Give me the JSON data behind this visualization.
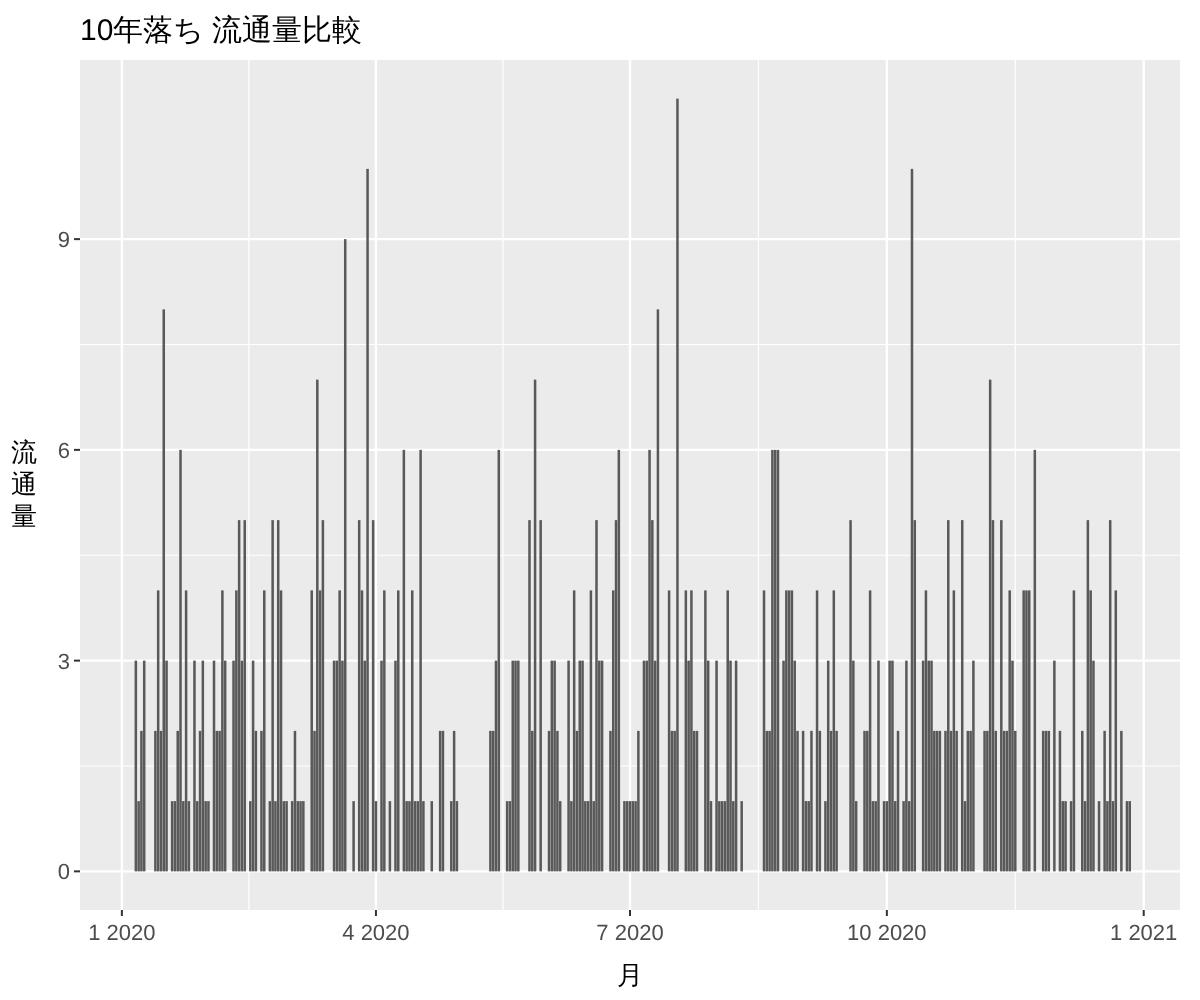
{
  "chart_data": {
    "type": "bar",
    "title": "10年落ち 流通量比較",
    "xlabel": "月",
    "ylabel": "流通量",
    "x": [
      "2020-01-06",
      "2020-01-07",
      "2020-01-08",
      "2020-01-09",
      "2020-01-13",
      "2020-01-14",
      "2020-01-15",
      "2020-01-16",
      "2020-01-17",
      "2020-01-19",
      "2020-01-20",
      "2020-01-21",
      "2020-01-22",
      "2020-01-23",
      "2020-01-24",
      "2020-01-25",
      "2020-01-27",
      "2020-01-28",
      "2020-01-29",
      "2020-01-30",
      "2020-01-31",
      "2020-02-01",
      "2020-02-03",
      "2020-02-04",
      "2020-02-05",
      "2020-02-06",
      "2020-02-07",
      "2020-02-10",
      "2020-02-11",
      "2020-02-12",
      "2020-02-13",
      "2020-02-14",
      "2020-02-16",
      "2020-02-17",
      "2020-02-18",
      "2020-02-20",
      "2020-02-21",
      "2020-02-23",
      "2020-02-24",
      "2020-02-25",
      "2020-02-26",
      "2020-02-27",
      "2020-02-28",
      "2020-02-29",
      "2020-03-02",
      "2020-03-03",
      "2020-03-04",
      "2020-03-05",
      "2020-03-06",
      "2020-03-09",
      "2020-03-10",
      "2020-03-11",
      "2020-03-12",
      "2020-03-13",
      "2020-03-17",
      "2020-03-18",
      "2020-03-19",
      "2020-03-20",
      "2020-03-21",
      "2020-03-24",
      "2020-03-26",
      "2020-03-27",
      "2020-03-28",
      "2020-03-29",
      "2020-03-31",
      "2020-04-01",
      "2020-04-03",
      "2020-04-04",
      "2020-04-06",
      "2020-04-08",
      "2020-04-09",
      "2020-04-11",
      "2020-04-12",
      "2020-04-13",
      "2020-04-14",
      "2020-04-15",
      "2020-04-16",
      "2020-04-17",
      "2020-04-18",
      "2020-04-21",
      "2020-04-24",
      "2020-04-25",
      "2020-04-28",
      "2020-04-29",
      "2020-04-30",
      "2020-05-12",
      "2020-05-13",
      "2020-05-14",
      "2020-05-15",
      "2020-05-18",
      "2020-05-19",
      "2020-05-20",
      "2020-05-21",
      "2020-05-22",
      "2020-05-26",
      "2020-05-27",
      "2020-05-28",
      "2020-05-30",
      "2020-06-02",
      "2020-06-03",
      "2020-06-04",
      "2020-06-05",
      "2020-06-06",
      "2020-06-09",
      "2020-06-10",
      "2020-06-11",
      "2020-06-12",
      "2020-06-13",
      "2020-06-14",
      "2020-06-15",
      "2020-06-16",
      "2020-06-17",
      "2020-06-18",
      "2020-06-19",
      "2020-06-20",
      "2020-06-21",
      "2020-06-24",
      "2020-06-25",
      "2020-06-26",
      "2020-06-27",
      "2020-06-29",
      "2020-06-30",
      "2020-07-01",
      "2020-07-02",
      "2020-07-03",
      "2020-07-04",
      "2020-07-06",
      "2020-07-07",
      "2020-07-08",
      "2020-07-09",
      "2020-07-10",
      "2020-07-11",
      "2020-07-15",
      "2020-07-16",
      "2020-07-17",
      "2020-07-18",
      "2020-07-21",
      "2020-07-22",
      "2020-07-23",
      "2020-07-24",
      "2020-07-25",
      "2020-07-28",
      "2020-07-29",
      "2020-07-30",
      "2020-08-01",
      "2020-08-02",
      "2020-08-03",
      "2020-08-04",
      "2020-08-05",
      "2020-08-06",
      "2020-08-07",
      "2020-08-08",
      "2020-08-10",
      "2020-08-18",
      "2020-08-19",
      "2020-08-20",
      "2020-08-21",
      "2020-08-22",
      "2020-08-23",
      "2020-08-25",
      "2020-08-26",
      "2020-08-27",
      "2020-08-28",
      "2020-08-29",
      "2020-08-30",
      "2020-09-01",
      "2020-09-02",
      "2020-09-03",
      "2020-09-04",
      "2020-09-06",
      "2020-09-07",
      "2020-09-09",
      "2020-09-10",
      "2020-09-11",
      "2020-09-12",
      "2020-09-13",
      "2020-09-18",
      "2020-09-19",
      "2020-09-20",
      "2020-09-23",
      "2020-09-24",
      "2020-09-25",
      "2020-09-26",
      "2020-09-27",
      "2020-09-28",
      "2020-09-30",
      "2020-10-01",
      "2020-10-02",
      "2020-10-03",
      "2020-10-04",
      "2020-10-05",
      "2020-10-07",
      "2020-10-08",
      "2020-10-09",
      "2020-10-10",
      "2020-10-11",
      "2020-10-14",
      "2020-10-15",
      "2020-10-16",
      "2020-10-17",
      "2020-10-18",
      "2020-10-19",
      "2020-10-20",
      "2020-10-22",
      "2020-10-23",
      "2020-10-24",
      "2020-10-25",
      "2020-10-26",
      "2020-10-28",
      "2020-10-29",
      "2020-10-30",
      "2020-10-31",
      "2020-11-01",
      "2020-11-05",
      "2020-11-06",
      "2020-11-07",
      "2020-11-08",
      "2020-11-09",
      "2020-11-11",
      "2020-11-12",
      "2020-11-13",
      "2020-11-14",
      "2020-11-15",
      "2020-11-16",
      "2020-11-19",
      "2020-11-20",
      "2020-11-21",
      "2020-11-23",
      "2020-11-26",
      "2020-11-27",
      "2020-11-28",
      "2020-11-30",
      "2020-12-02",
      "2020-12-03",
      "2020-12-04",
      "2020-12-06",
      "2020-12-07",
      "2020-12-10",
      "2020-12-11",
      "2020-12-12",
      "2020-12-13",
      "2020-12-14",
      "2020-12-16",
      "2020-12-18",
      "2020-12-19",
      "2020-12-20",
      "2020-12-21",
      "2020-12-22",
      "2020-12-24",
      "2020-12-26",
      "2020-12-27"
    ],
    "values": [
      3,
      1,
      2,
      3,
      2,
      4,
      2,
      8,
      3,
      1,
      1,
      2,
      6,
      1,
      4,
      1,
      3,
      1,
      2,
      3,
      1,
      1,
      3,
      2,
      2,
      4,
      3,
      3,
      4,
      5,
      3,
      5,
      1,
      3,
      2,
      2,
      4,
      1,
      5,
      1,
      5,
      4,
      1,
      1,
      1,
      2,
      1,
      1,
      1,
      4,
      2,
      7,
      4,
      5,
      3,
      3,
      4,
      3,
      9,
      1,
      5,
      4,
      3,
      10,
      5,
      1,
      3,
      4,
      1,
      3,
      4,
      6,
      1,
      1,
      4,
      1,
      1,
      6,
      1,
      1,
      2,
      2,
      1,
      2,
      1,
      2,
      2,
      3,
      6,
      1,
      1,
      3,
      3,
      3,
      5,
      2,
      7,
      5,
      2,
      3,
      3,
      2,
      1,
      3,
      1,
      4,
      2,
      3,
      3,
      1,
      1,
      4,
      1,
      5,
      3,
      3,
      2,
      4,
      5,
      6,
      1,
      1,
      1,
      1,
      1,
      2,
      3,
      3,
      6,
      5,
      3,
      8,
      4,
      2,
      2,
      11,
      4,
      3,
      4,
      2,
      2,
      4,
      3,
      1,
      3,
      1,
      1,
      1,
      4,
      3,
      1,
      3,
      1,
      4,
      2,
      2,
      6,
      6,
      6,
      3,
      4,
      4,
      4,
      3,
      2,
      2,
      1,
      1,
      2,
      4,
      2,
      1,
      3,
      2,
      4,
      2,
      5,
      3,
      1,
      2,
      2,
      4,
      1,
      1,
      3,
      1,
      1,
      3,
      3,
      1,
      2,
      1,
      3,
      1,
      10,
      5,
      3,
      4,
      3,
      3,
      2,
      2,
      2,
      2,
      5,
      2,
      4,
      2,
      5,
      1,
      2,
      2,
      3,
      2,
      2,
      7,
      5,
      2,
      5,
      2,
      2,
      4,
      3,
      2,
      4,
      4,
      4,
      6,
      2,
      2,
      2,
      3,
      2,
      1,
      1,
      1,
      4,
      2,
      1,
      5,
      4,
      3,
      1,
      2,
      1,
      5,
      1,
      4,
      2,
      1,
      1
    ],
    "color": "#595959",
    "xlim": [
      "2019-12-17",
      "2021-01-14"
    ],
    "xticks": [
      {
        "value": "2020-01-01",
        "label": "1 2020"
      },
      {
        "value": "2020-04-01",
        "label": "4 2020"
      },
      {
        "value": "2020-07-01",
        "label": "7 2020"
      },
      {
        "value": "2020-10-01",
        "label": "10 2020"
      },
      {
        "value": "2021-01-01",
        "label": "1 2021"
      }
    ],
    "ylim": [
      -0.55,
      11.55
    ],
    "yticks": [
      0,
      3,
      6,
      9
    ],
    "grid": true
  }
}
